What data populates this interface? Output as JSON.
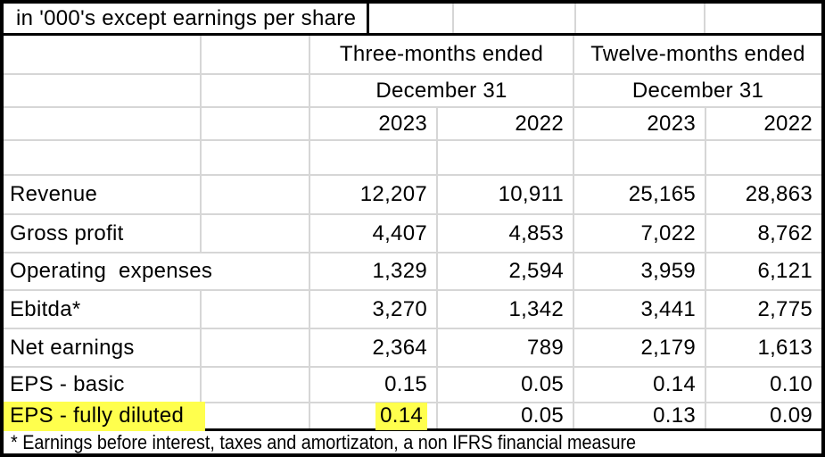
{
  "title": "in '000's except earnings per share",
  "header": {
    "group1": "Three-months ended",
    "group2": "Twelve-months ended",
    "sub1": "December 31",
    "sub2": "December 31",
    "years": [
      "2023",
      "2022",
      "2023",
      "2022"
    ]
  },
  "rows": [
    {
      "label": "Revenue",
      "values": [
        "12,207",
        "10,911",
        "25,165",
        "28,863"
      ]
    },
    {
      "label": "Gross profit",
      "values": [
        "4,407",
        "4,853",
        "7,022",
        "8,762"
      ]
    },
    {
      "label": "Operating  expenses",
      "values": [
        "1,329",
        "2,594",
        "3,959",
        "6,121"
      ]
    },
    {
      "label": "Ebitda*",
      "values": [
        "3,270",
        "1,342",
        "3,441",
        "2,775"
      ]
    },
    {
      "label": "Net earnings",
      "values": [
        "2,364",
        "789",
        "2,179",
        "1,613"
      ]
    },
    {
      "label": "EPS - basic",
      "values": [
        "0.15",
        "0.05",
        "0.14",
        "0.10"
      ]
    },
    {
      "label": "EPS - fully diluted",
      "values": [
        "0.14",
        "0.05",
        "0.13",
        "0.09"
      ],
      "label_highlighted": true,
      "highlighted_value_index": 0
    }
  ],
  "footnote": "* Earnings before interest, taxes and amortizaton, a non IFRS financial measure",
  "colors": {
    "highlight": "#ffff4d",
    "gridline": "#d6d6d6",
    "border": "#000000",
    "background": "#ffffff",
    "text": "#000000"
  }
}
